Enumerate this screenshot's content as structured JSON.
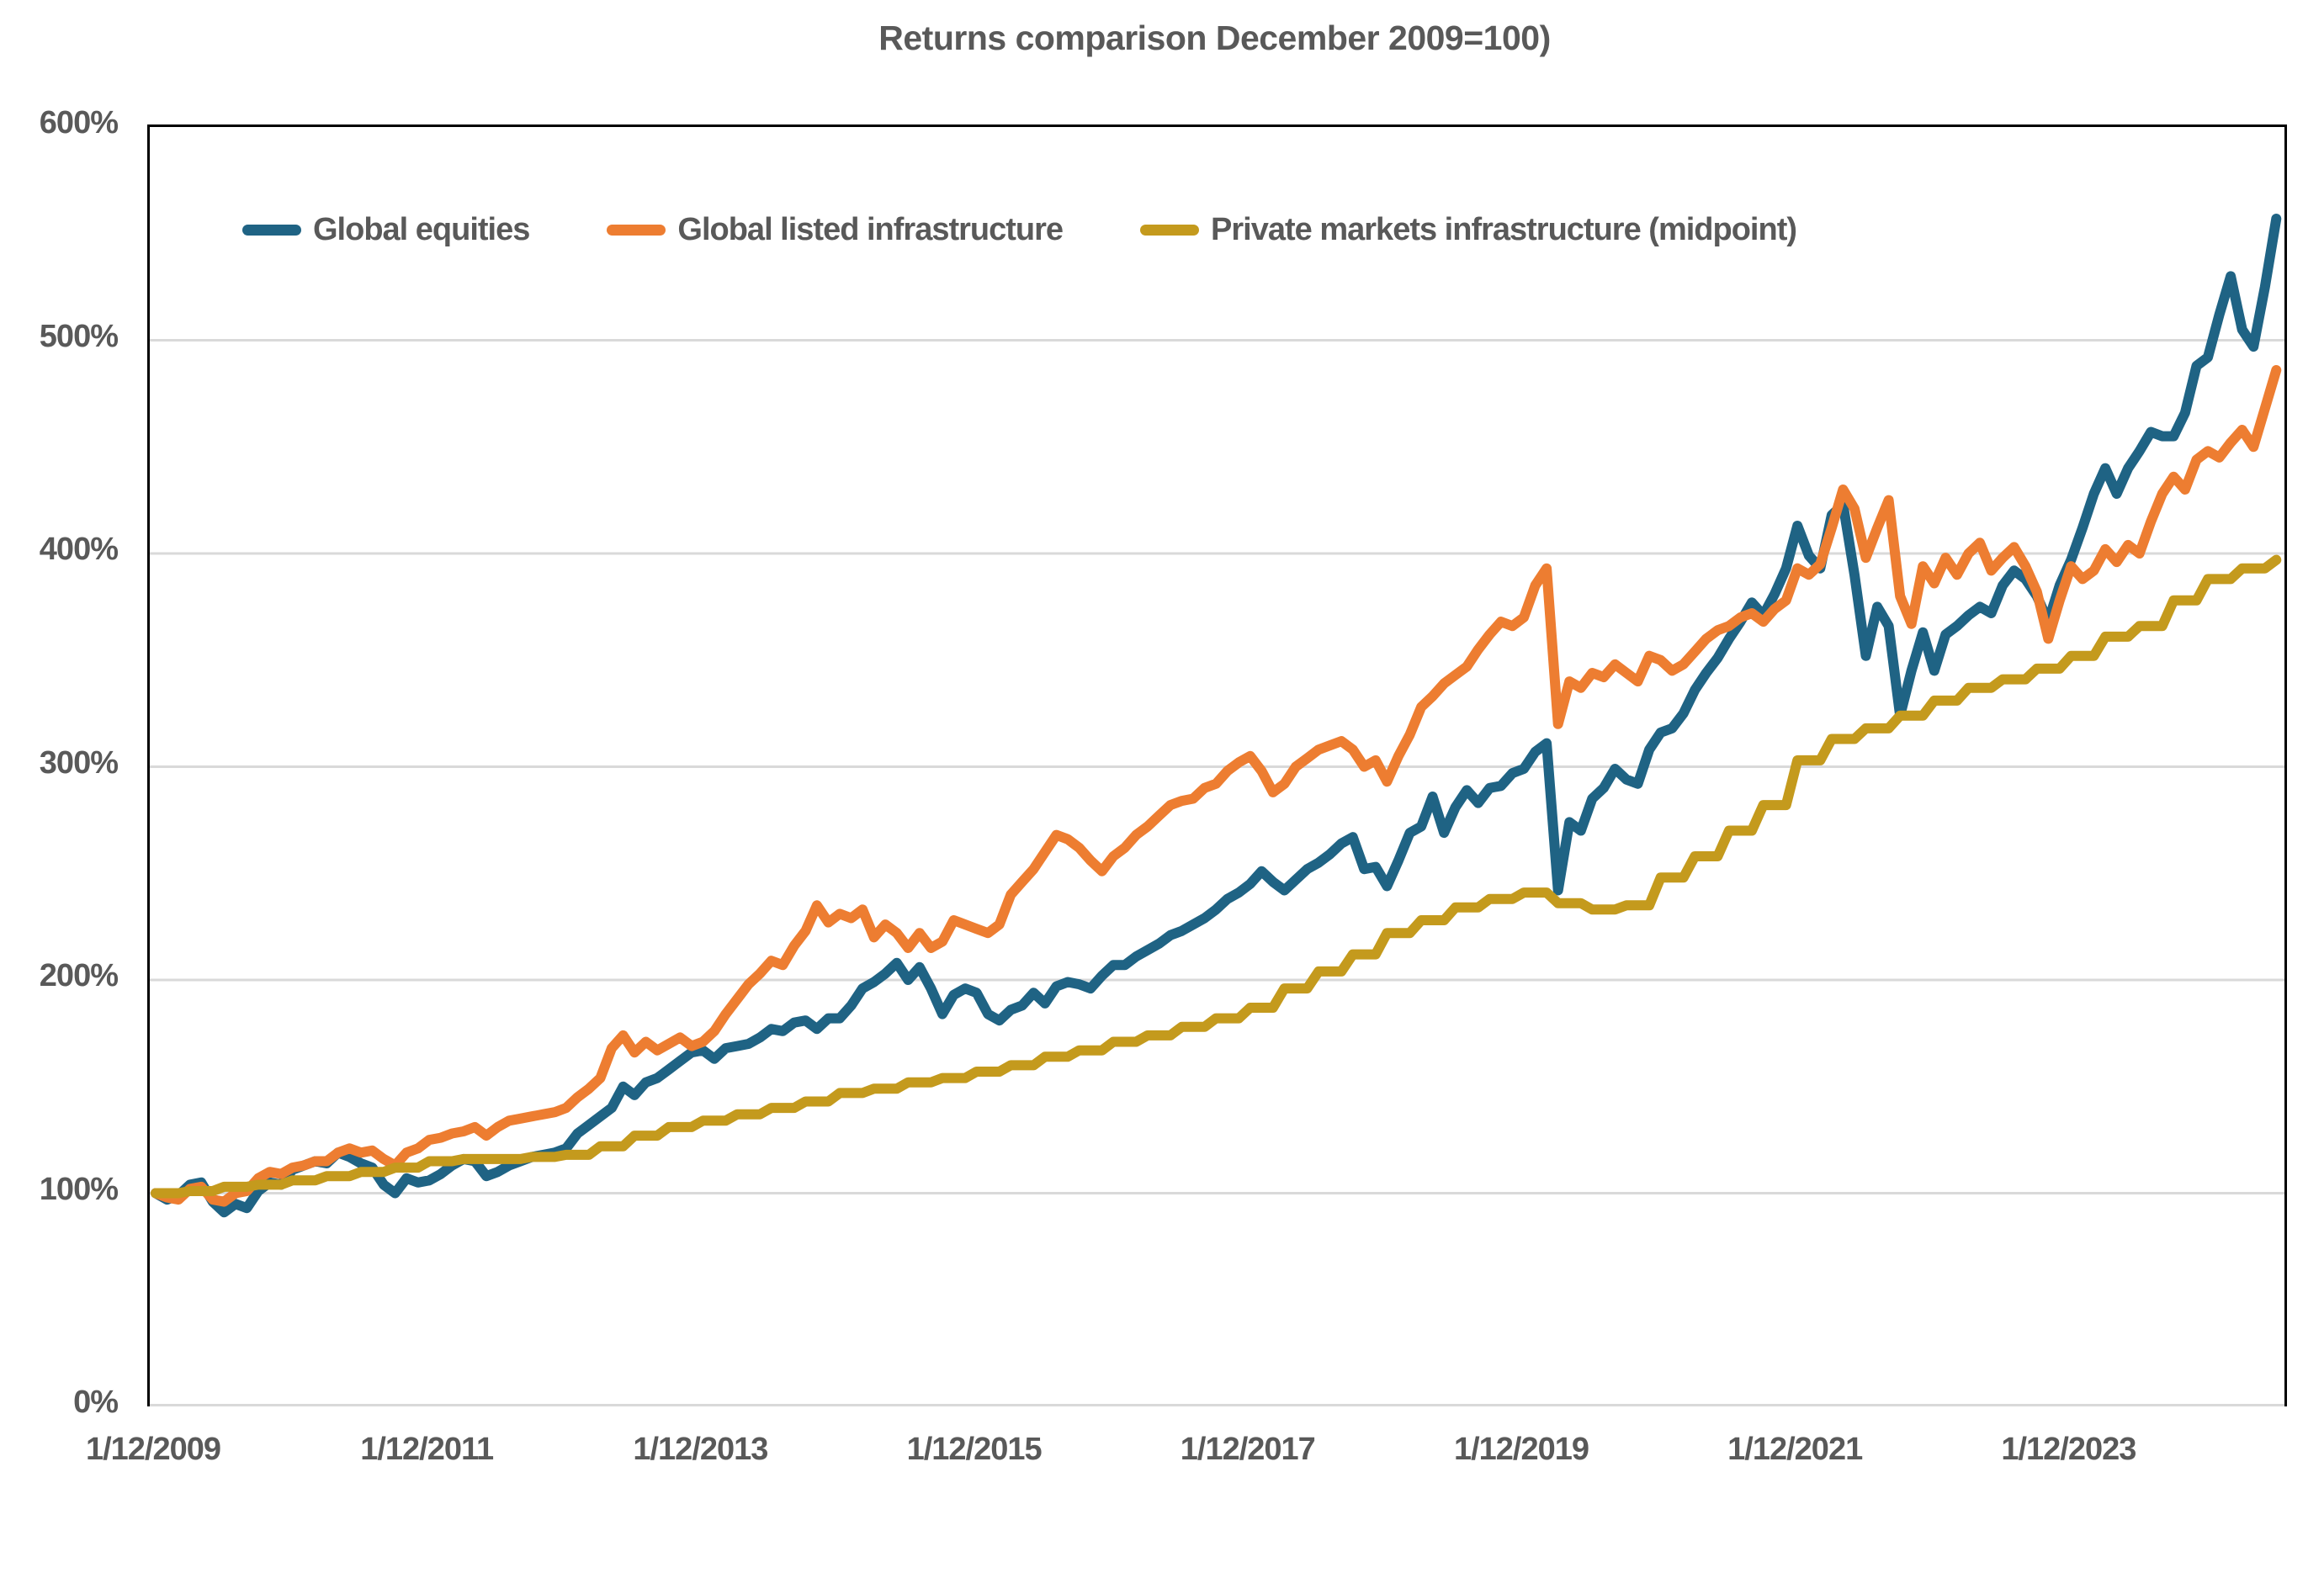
{
  "title": "Returns comparison December 2009=100)",
  "colors": {
    "text": "#595959",
    "grid": "#d9d9d9",
    "axis": "#000000",
    "background": "#ffffff",
    "global_equities": "#1f6384",
    "global_listed_infrastructure": "#ed7d31",
    "private_markets_infrastructure": "#c49a1d"
  },
  "chart_data": {
    "type": "line",
    "title": "Returns comparison December 2009=100)",
    "xlabel": "",
    "ylabel": "",
    "ylim": [
      0,
      600
    ],
    "y_unit": "percent",
    "grid": "horizontal",
    "legend_position": "top-left-inside",
    "x_start": "1/12/2009",
    "x_end": "mid-2025",
    "x_frequency": "monthly",
    "x_tick_labels": [
      "1/12/2009",
      "1/12/2011",
      "1/12/2013",
      "1/12/2015",
      "1/12/2017",
      "1/12/2019",
      "1/12/2021",
      "1/12/2023"
    ],
    "y_tick_labels": [
      "0%",
      "100%",
      "200%",
      "300%",
      "400%",
      "500%",
      "600%"
    ],
    "series": [
      {
        "name": "Global equities",
        "color": "#1f6384",
        "frequency": "monthly",
        "style": "linear",
        "values": [
          100,
          97,
          99,
          104,
          105,
          96,
          91,
          95,
          93,
          101,
          105,
          104,
          111,
          113,
          115,
          114,
          119,
          117,
          114,
          112,
          104,
          100,
          107,
          105,
          106,
          109,
          113,
          116,
          115,
          108,
          110,
          113,
          115,
          117,
          118,
          119,
          121,
          128,
          132,
          136,
          140,
          150,
          146,
          152,
          154,
          158,
          162,
          166,
          167,
          163,
          168,
          169,
          170,
          173,
          177,
          176,
          180,
          181,
          177,
          182,
          182,
          188,
          196,
          199,
          203,
          208,
          200,
          206,
          196,
          184,
          193,
          196,
          194,
          184,
          181,
          186,
          188,
          194,
          189,
          197,
          199,
          198,
          196,
          202,
          207,
          207,
          211,
          214,
          217,
          221,
          223,
          226,
          229,
          233,
          238,
          241,
          245,
          251,
          246,
          242,
          247,
          252,
          255,
          259,
          264,
          267,
          252,
          253,
          244,
          256,
          269,
          272,
          286,
          269,
          281,
          289,
          283,
          290,
          291,
          297,
          299,
          307,
          311,
          242,
          274,
          270,
          285,
          290,
          299,
          294,
          292,
          308,
          316,
          318,
          325,
          336,
          344,
          351,
          360,
          368,
          377,
          371,
          381,
          393,
          413,
          399,
          393,
          418,
          423,
          390,
          352,
          375,
          366,
          324,
          345,
          363,
          345,
          362,
          366,
          371,
          375,
          372,
          385,
          392,
          388,
          380,
          368,
          385,
          397,
          412,
          428,
          440,
          428,
          440,
          448,
          457,
          455,
          455,
          466,
          488,
          492,
          512,
          530,
          505,
          497,
          525,
          557
        ]
      },
      {
        "name": "Global listed infrastructure",
        "color": "#ed7d31",
        "frequency": "monthly",
        "style": "linear",
        "values": [
          100,
          98,
          97,
          102,
          103,
          97,
          96,
          100,
          101,
          107,
          110,
          109,
          112,
          113,
          115,
          115,
          119,
          121,
          119,
          120,
          116,
          113,
          119,
          121,
          125,
          126,
          128,
          129,
          131,
          127,
          131,
          134,
          135,
          136,
          137,
          138,
          140,
          145,
          149,
          154,
          168,
          174,
          166,
          171,
          167,
          170,
          173,
          169,
          171,
          176,
          184,
          191,
          198,
          203,
          209,
          207,
          216,
          223,
          235,
          227,
          231,
          229,
          233,
          220,
          226,
          222,
          215,
          222,
          215,
          218,
          228,
          226,
          224,
          222,
          226,
          240,
          246,
          252,
          260,
          268,
          266,
          262,
          256,
          251,
          258,
          262,
          268,
          272,
          277,
          282,
          284,
          285,
          290,
          292,
          298,
          302,
          305,
          298,
          288,
          292,
          300,
          304,
          308,
          310,
          312,
          308,
          300,
          303,
          293,
          305,
          315,
          328,
          333,
          339,
          343,
          347,
          355,
          362,
          368,
          366,
          370,
          385,
          393,
          320,
          340,
          337,
          344,
          342,
          348,
          344,
          340,
          352,
          350,
          345,
          348,
          354,
          360,
          364,
          366,
          370,
          372,
          368,
          374,
          378,
          393,
          390,
          395,
          412,
          430,
          421,
          398,
          412,
          425,
          380,
          367,
          394,
          386,
          398,
          390,
          400,
          405,
          392,
          398,
          403,
          394,
          382,
          360,
          378,
          394,
          388,
          392,
          402,
          396,
          404,
          400,
          415,
          428,
          436,
          430,
          444,
          448,
          445,
          452,
          458,
          450,
          468,
          486
        ]
      },
      {
        "name": "Private markets infrastructure (midpoint)",
        "color": "#c49a1d",
        "frequency": "quarterly",
        "style": "step",
        "values": [
          100,
          101,
          103,
          104,
          106,
          108,
          110,
          112,
          115,
          116,
          116,
          117,
          118,
          122,
          127,
          131,
          134,
          137,
          140,
          143,
          147,
          149,
          152,
          154,
          157,
          160,
          164,
          167,
          171,
          174,
          178,
          182,
          187,
          196,
          204,
          212,
          222,
          228,
          234,
          238,
          241,
          236,
          233,
          235,
          248,
          258,
          270,
          282,
          303,
          313,
          318,
          324,
          331,
          337,
          341,
          346,
          352,
          361,
          366,
          378,
          388,
          393,
          397
        ]
      }
    ]
  }
}
